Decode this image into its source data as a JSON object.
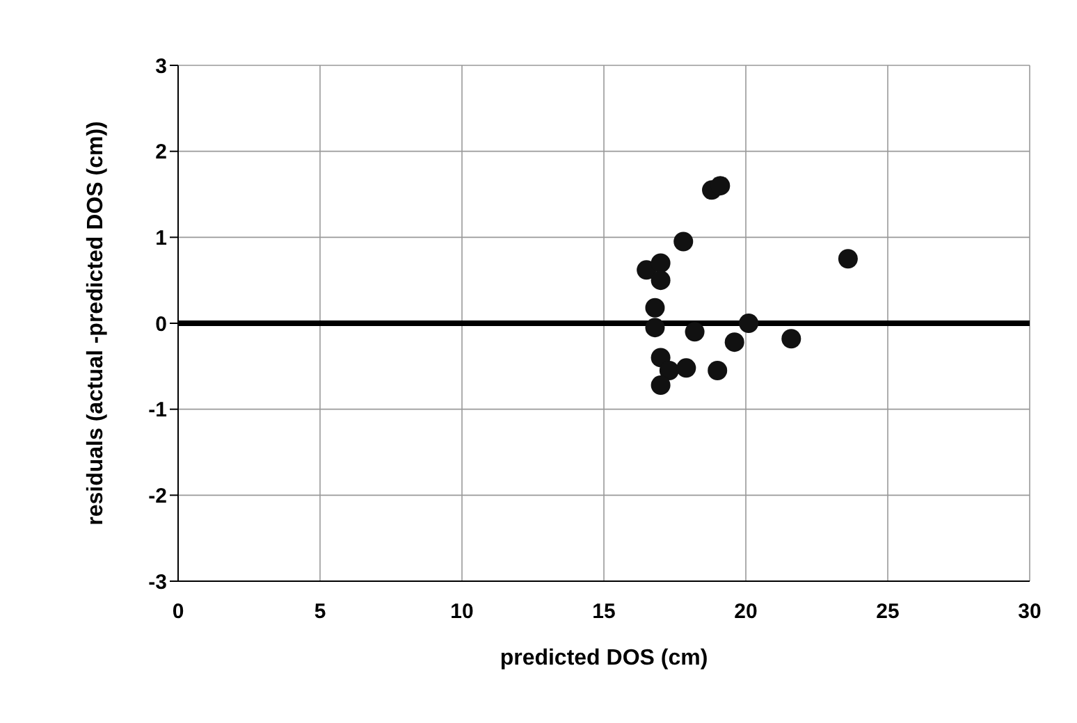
{
  "chart_data": {
    "type": "scatter",
    "xlabel": "predicted DOS (cm)",
    "ylabel": "residuals (actual -predicted DOS (cm))",
    "x": [
      16.5,
      17.0,
      17.0,
      17.8,
      18.8,
      19.1,
      16.8,
      16.8,
      18.2,
      17.0,
      17.3,
      17.9,
      17.0,
      19.0,
      19.6,
      20.1,
      21.6,
      23.6
    ],
    "series": [
      {
        "color": "#111111",
        "values": [
          0.62,
          0.7,
          0.5,
          0.95,
          1.55,
          1.6,
          0.18,
          -0.05,
          -0.1,
          -0.4,
          -0.55,
          -0.52,
          -0.72,
          -0.55,
          -0.22,
          0.0,
          -0.18,
          0.75
        ]
      }
    ],
    "xlim": [
      0,
      30
    ],
    "xticks": [
      0,
      5,
      10,
      15,
      20,
      25,
      30
    ],
    "ylim": [
      -3,
      3
    ],
    "yticks": [
      -3,
      -2,
      -1,
      0,
      1,
      2,
      3
    ],
    "ref_lines": [
      {
        "axis": "y",
        "value": 0,
        "color": "#000000"
      }
    ],
    "grid": true,
    "marker": "circle",
    "legend": false
  }
}
